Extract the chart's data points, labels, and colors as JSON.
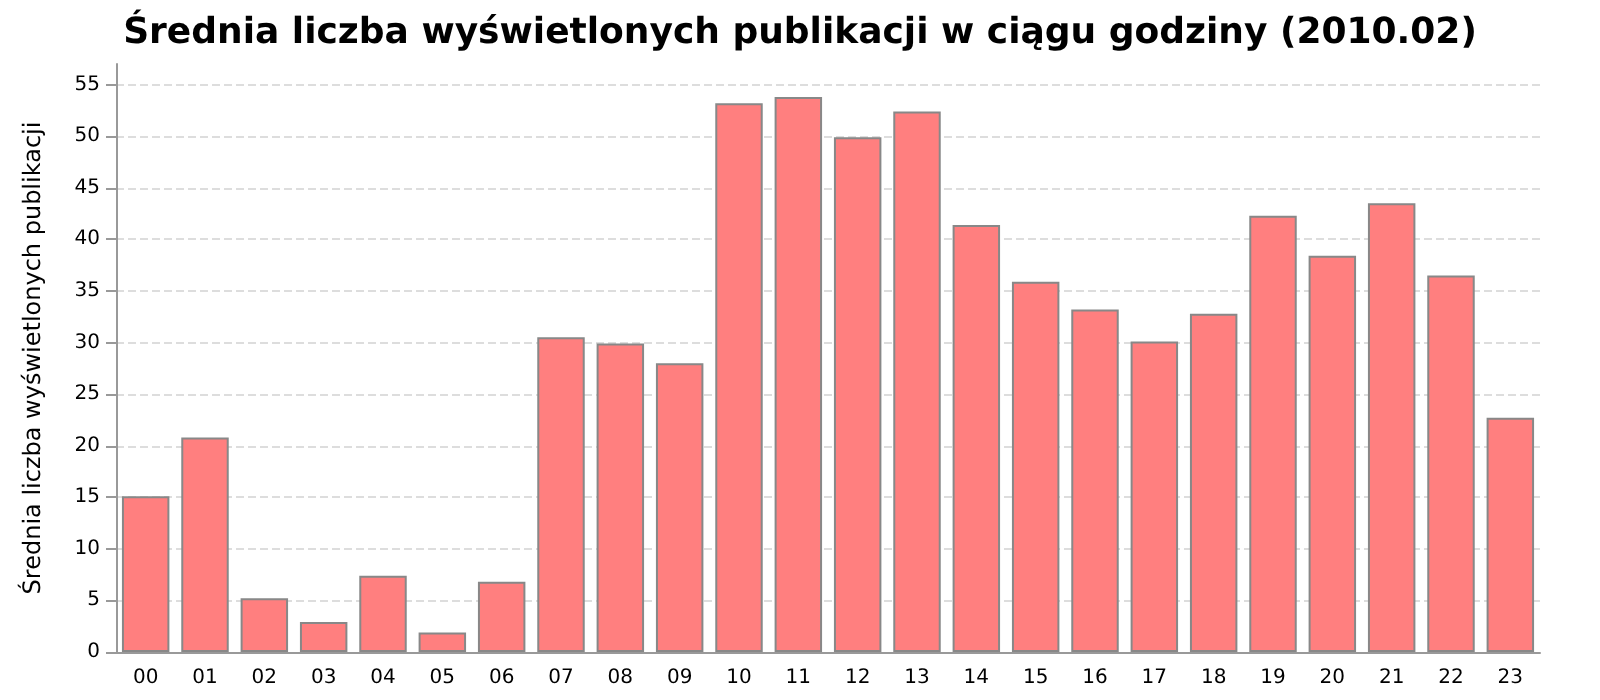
{
  "chart_data": {
    "type": "bar",
    "title": "Średnia liczba wyświetlonych publikacji w ciągu godziny (2010.02)",
    "ylabel": "Średnia liczba wyświetlonych publikacji",
    "categories": [
      "00",
      "01",
      "02",
      "03",
      "04",
      "05",
      "06",
      "07",
      "08",
      "09",
      "10",
      "11",
      "12",
      "13",
      "14",
      "15",
      "16",
      "17",
      "18",
      "19",
      "20",
      "21",
      "22",
      "23"
    ],
    "values": [
      15.1,
      20.8,
      5.2,
      2.9,
      7.4,
      1.9,
      6.8,
      30.5,
      29.9,
      28,
      53.2,
      53.8,
      49.9,
      52.4,
      41.4,
      35.9,
      33.2,
      30.1,
      32.8,
      42.3,
      38.4,
      43.5,
      36.5,
      22.7
    ],
    "color": "#ff7f7f",
    "ylim": [
      0,
      57
    ],
    "yticks": [
      0,
      5,
      10,
      15,
      20,
      25,
      30,
      35,
      40,
      45,
      50,
      55
    ],
    "grid": "y"
  }
}
